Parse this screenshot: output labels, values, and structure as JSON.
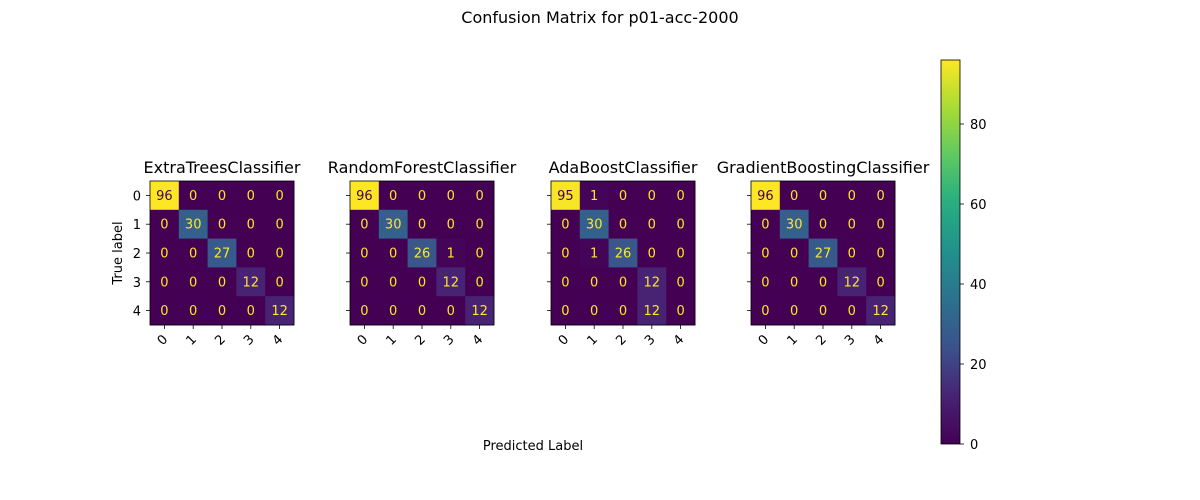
{
  "chart_data": {
    "type": "heatmap",
    "title": "Confusion Matrix for p01-acc-2000",
    "xlabel": "Predicted Label",
    "ylabel": "True label",
    "tick_labels": [
      "0",
      "1",
      "2",
      "3",
      "4"
    ],
    "colormap": "viridis",
    "color_range": [
      0,
      96
    ],
    "colorbar_ticks": [
      "0",
      "20",
      "40",
      "60",
      "80"
    ],
    "colorbar_tick_values": [
      0,
      20,
      40,
      60,
      80
    ],
    "text_color_light": "#fde725",
    "text_color_dark": "#440154",
    "panels": [
      {
        "title": "ExtraTreesClassifier",
        "matrix": [
          [
            96,
            0,
            0,
            0,
            0
          ],
          [
            0,
            30,
            0,
            0,
            0
          ],
          [
            0,
            0,
            27,
            0,
            0
          ],
          [
            0,
            0,
            0,
            12,
            0
          ],
          [
            0,
            0,
            0,
            0,
            12
          ]
        ]
      },
      {
        "title": "RandomForestClassifier",
        "matrix": [
          [
            96,
            0,
            0,
            0,
            0
          ],
          [
            0,
            30,
            0,
            0,
            0
          ],
          [
            0,
            0,
            26,
            1,
            0
          ],
          [
            0,
            0,
            0,
            12,
            0
          ],
          [
            0,
            0,
            0,
            0,
            12
          ]
        ]
      },
      {
        "title": "AdaBoostClassifier",
        "matrix": [
          [
            95,
            1,
            0,
            0,
            0
          ],
          [
            0,
            30,
            0,
            0,
            0
          ],
          [
            0,
            1,
            26,
            0,
            0
          ],
          [
            0,
            0,
            0,
            12,
            0
          ],
          [
            0,
            0,
            0,
            12,
            0
          ]
        ]
      },
      {
        "title": "GradientBoostingClassifier",
        "matrix": [
          [
            96,
            0,
            0,
            0,
            0
          ],
          [
            0,
            30,
            0,
            0,
            0
          ],
          [
            0,
            0,
            27,
            0,
            0
          ],
          [
            0,
            0,
            0,
            12,
            0
          ],
          [
            0,
            0,
            0,
            0,
            12
          ]
        ]
      }
    ]
  }
}
